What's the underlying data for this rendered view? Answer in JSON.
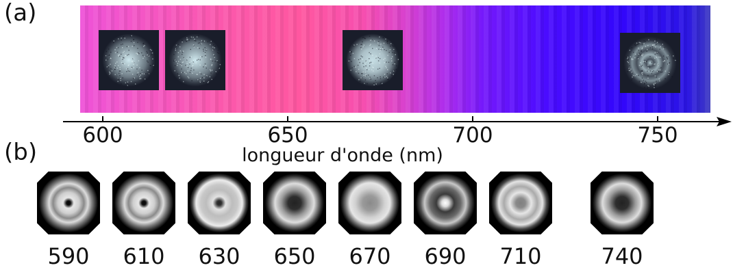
{
  "panel_a": {
    "label": "(a)",
    "axis": {
      "title": "longueur d'onde (nm)",
      "ticks": [
        {
          "value": 600,
          "label": "600"
        },
        {
          "value": 650,
          "label": "650"
        },
        {
          "value": 700,
          "label": "700"
        },
        {
          "value": 750,
          "label": "750"
        }
      ]
    },
    "speckle_images": [
      {
        "wavelength_nm": 607,
        "pattern": "spot"
      },
      {
        "wavelength_nm": 625,
        "pattern": "spot"
      },
      {
        "wavelength_nm": 673,
        "pattern": "disk"
      },
      {
        "wavelength_nm": 748,
        "pattern": "ring"
      }
    ]
  },
  "panel_b": {
    "label": "(b)",
    "modes": [
      {
        "label": "590",
        "pattern": "rings-dark-center"
      },
      {
        "label": "610",
        "pattern": "rings-dark-center"
      },
      {
        "label": "630",
        "pattern": "rings-dark-dot"
      },
      {
        "label": "650",
        "pattern": "ring-dark-center"
      },
      {
        "label": "670",
        "pattern": "ring-gray-center"
      },
      {
        "label": "690",
        "pattern": "ring-bright-center"
      },
      {
        "label": "710",
        "pattern": "rings-gray-center"
      },
      {
        "label": "740",
        "pattern": "ring-dark-center"
      }
    ]
  },
  "colors": {
    "spectrum_red_end": "#ee52d8",
    "spectrum_blue_end": "#3206fb",
    "speckle_background": "#191d2a",
    "speckle_glow": "#cfe8ee"
  }
}
